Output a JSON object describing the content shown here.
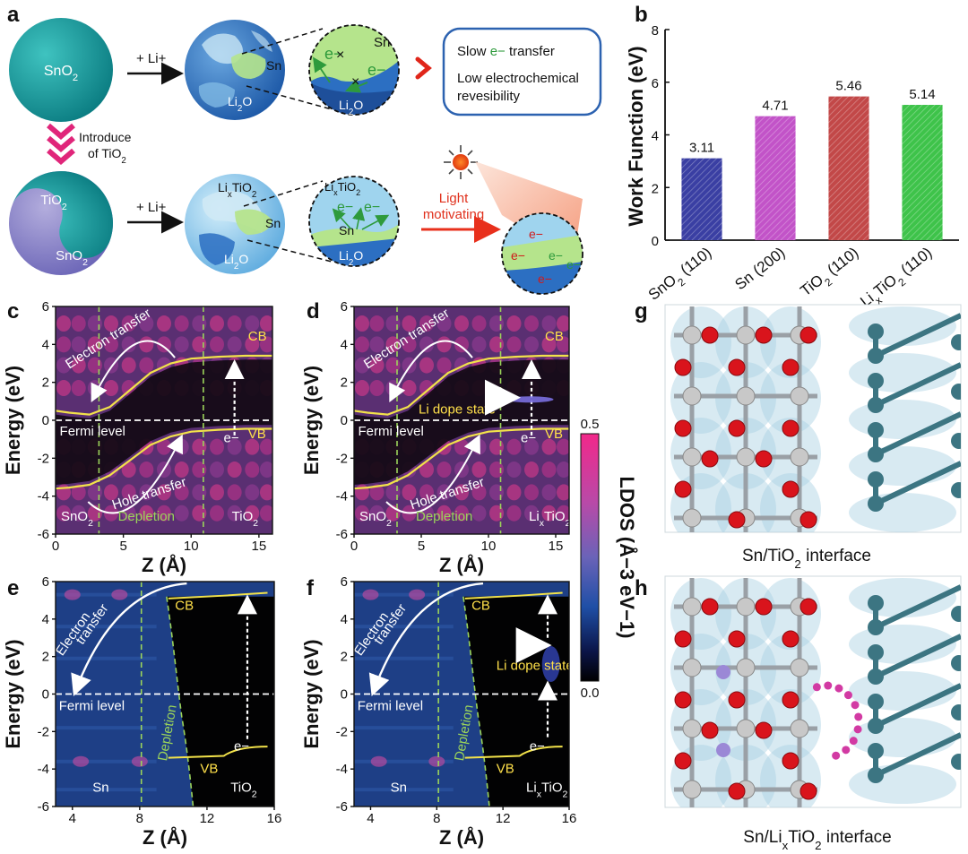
{
  "panel_labels": {
    "a": "a",
    "b": "b",
    "c": "c",
    "d": "d",
    "e": "e",
    "f": "f",
    "g": "g",
    "h": "h"
  },
  "colors": {
    "sphere_teal": "#149a9c",
    "sphere_blue": "#2c6fc2",
    "sphere_light": "#9fd4ee",
    "tio2_purple": "#8b85cc",
    "sn_green": "#b5e48c",
    "arrow_pink": "#e0267a",
    "cb_vb_yellow": "#f2e24a",
    "depletion_green": "#9bd45a",
    "bar_sno2": "#3a3fa3",
    "bar_sn": "#c253c8",
    "bar_tio2": "#c24848",
    "bar_lixtio2": "#3ec34a",
    "o_red": "#d9141c",
    "sn_grey": "#c8c8c8",
    "ti_teal": "#3c7582",
    "li_purple": "#9b88d6",
    "dot_magenta": "#d23aa3"
  },
  "schematic": {
    "sno2": "SnO2",
    "plus_li": "+ Li+",
    "sn": "Sn",
    "li2o": "Li2O",
    "e_minus": "e−",
    "cross": "×",
    "slow_transfer_pre": "Slow ",
    "slow_transfer_e": "e−",
    "slow_transfer_post": " transfer",
    "low_reversibility_1": "Low electrochemical",
    "low_reversibility_2": "revesibility",
    "introduce_1": "Introduce",
    "introduce_2": "of TiO2",
    "tio2": "TiO2",
    "lixtio2": "LixTiO2",
    "light_1": "Light",
    "light_2": "motivating"
  },
  "chart_data": [
    {
      "panel": "b",
      "type": "bar",
      "categories": [
        "SnO2 (110)",
        "Sn (200)",
        "TiO2 (110)",
        "LixTiO2 (110)"
      ],
      "values": [
        3.11,
        4.71,
        5.46,
        5.14
      ],
      "data_labels": [
        "3.11",
        "4.71",
        "5.46",
        "5.14"
      ],
      "ylabel": "Work Function (eV)",
      "ylim": [
        0,
        8
      ],
      "yticks": [
        "0",
        "2",
        "4",
        "6",
        "8"
      ]
    },
    {
      "panel": "c",
      "type": "heatmap",
      "xlabel": "Z (Å)",
      "ylabel": "Energy (eV)",
      "xlim": [
        0,
        16
      ],
      "ylim": [
        -6,
        6
      ],
      "xticks": [
        "0",
        "5",
        "10",
        "15"
      ],
      "yticks": [
        "6",
        "4",
        "2",
        "0",
        "-2",
        "-4",
        "-6"
      ],
      "depletion_bounds": [
        3.2,
        10.9
      ],
      "cb": [
        [
          0,
          0.5
        ],
        [
          1,
          0.4
        ],
        [
          2.5,
          0.3
        ],
        [
          4,
          0.7
        ],
        [
          5.5,
          1.6
        ],
        [
          7,
          2.5
        ],
        [
          8.5,
          3.0
        ],
        [
          10,
          3.25
        ],
        [
          12,
          3.35
        ],
        [
          14,
          3.4
        ],
        [
          16,
          3.4
        ]
      ],
      "vb": [
        [
          0,
          -3.6
        ],
        [
          1,
          -3.55
        ],
        [
          2.5,
          -3.4
        ],
        [
          4,
          -2.9
        ],
        [
          5.5,
          -2.1
        ],
        [
          7,
          -1.3
        ],
        [
          8.5,
          -0.85
        ],
        [
          10,
          -0.6
        ],
        [
          12,
          -0.5
        ],
        [
          14,
          -0.45
        ],
        [
          16,
          -0.45
        ]
      ],
      "annotations": {
        "electron_transfer": "Electron transfer",
        "hole_transfer": "Hole transfer",
        "fermi": "Fermi level",
        "cb": "CB",
        "vb": "VB",
        "e": "e−",
        "left": "SnO2",
        "depletion": "Depletion",
        "right": "TiO2"
      }
    },
    {
      "panel": "d",
      "type": "heatmap",
      "xlabel": "Z (Å)",
      "ylabel": "Energy (eV)",
      "xlim": [
        0,
        16
      ],
      "ylim": [
        -6,
        6
      ],
      "xticks": [
        "0",
        "5",
        "10",
        "15"
      ],
      "yticks": [
        "6",
        "4",
        "2",
        "0",
        "-2",
        "-4",
        "-6"
      ],
      "depletion_bounds": [
        3.2,
        10.9
      ],
      "cb": [
        [
          0,
          0.5
        ],
        [
          1,
          0.4
        ],
        [
          2.5,
          0.3
        ],
        [
          4,
          0.7
        ],
        [
          5.5,
          1.6
        ],
        [
          7,
          2.5
        ],
        [
          8.5,
          3.0
        ],
        [
          10,
          3.25
        ],
        [
          12,
          3.35
        ],
        [
          14,
          3.4
        ],
        [
          16,
          3.4
        ]
      ],
      "vb": [
        [
          0,
          -3.6
        ],
        [
          1,
          -3.55
        ],
        [
          2.5,
          -3.4
        ],
        [
          4,
          -2.9
        ],
        [
          5.5,
          -2.1
        ],
        [
          7,
          -1.3
        ],
        [
          8.5,
          -0.85
        ],
        [
          10,
          -0.6
        ],
        [
          12,
          -0.5
        ],
        [
          14,
          -0.45
        ],
        [
          16,
          -0.45
        ]
      ],
      "annotations": {
        "electron_transfer": "Electron transfer",
        "hole_transfer": "Hole transfer",
        "fermi": "Fermi level",
        "cb": "CB",
        "vb": "VB",
        "e": "e−",
        "left": "SnO2",
        "depletion": "Depletion",
        "right": "LixTiO2",
        "dope": "Li dope state"
      }
    },
    {
      "panel": "e",
      "type": "heatmap",
      "xlabel": "Z (Å)",
      "ylabel": "Energy (eV)",
      "xlim": [
        3,
        16
      ],
      "ylim": [
        -6,
        6
      ],
      "xticks": [
        "4",
        "8",
        "12",
        "16"
      ],
      "yticks": [
        "6",
        "4",
        "2",
        "0",
        "-2",
        "-4",
        "-6"
      ],
      "depletion_line": 8.1,
      "cb_level": 5.4,
      "vb_level": -2.8,
      "annotations": {
        "electron_transfer_1": "Electron",
        "electron_transfer_2": "transfer",
        "fermi": "Fermi level",
        "cb": "CB",
        "vb": "VB",
        "e": "e−",
        "left": "Sn",
        "depletion": "Depletion",
        "right": "TiO2"
      }
    },
    {
      "panel": "f",
      "type": "heatmap",
      "xlabel": "Z (Å)",
      "ylabel": "Energy (eV)",
      "xlim": [
        3,
        16
      ],
      "ylim": [
        -6,
        6
      ],
      "xticks": [
        "4",
        "8",
        "12",
        "16"
      ],
      "yticks": [
        "6",
        "4",
        "2",
        "0",
        "-2",
        "-4",
        "-6"
      ],
      "depletion_line": 8.1,
      "cb_level": 5.4,
      "vb_level": -2.8,
      "annotations": {
        "electron_transfer_1": "Electron",
        "electron_transfer_2": "transfer",
        "fermi": "Fermi level",
        "cb": "CB",
        "vb": "VB",
        "e": "e−",
        "left": "Sn",
        "depletion": "Depletion",
        "right": "LixTiO2",
        "dope": "Li dope state"
      }
    }
  ],
  "colorbar": {
    "label": "LDOS (Å−3 eV−1)",
    "max": "0.5",
    "min": "0.0"
  },
  "structures": {
    "g_caption": "Sn/TiO2 interface",
    "h_caption": "Sn/LixTiO2 interface"
  }
}
